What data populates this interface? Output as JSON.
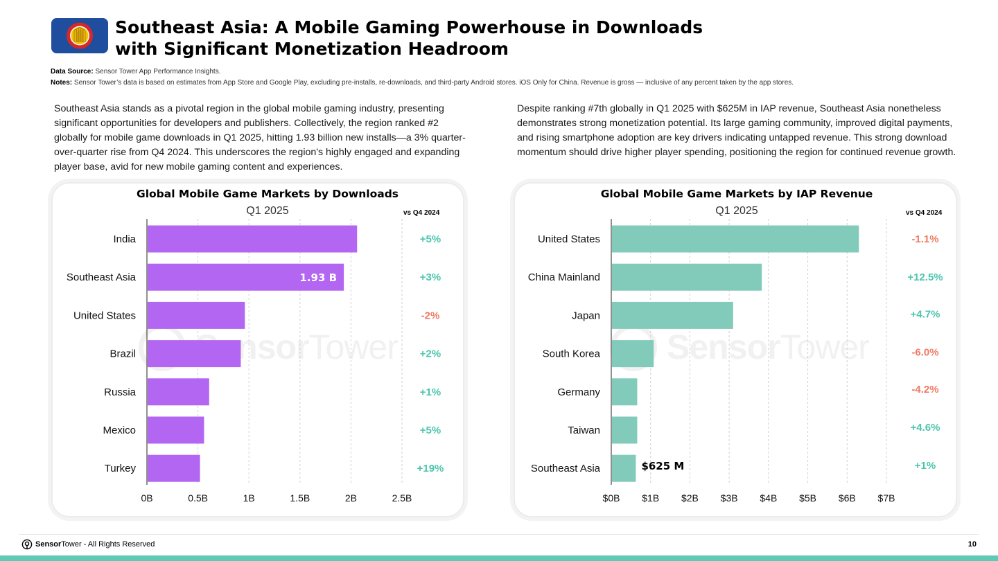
{
  "header": {
    "title": "Southeast Asia: A Mobile Gaming Powerhouse in Downloads with Significant Monetization Headroom",
    "data_source_label": "Data Source:",
    "data_source_text": "Sensor Tower App Performance Insights.",
    "notes_label": "Notes:",
    "notes_text": "Sensor Tower’s data is based on estimates from App Store and Google Play, excluding pre-installs, re-downloads, and third-party Android stores. iOS Only for China.  Revenue is gross — inclusive of any percent taken by the app stores."
  },
  "paragraphs": {
    "left": "Southeast Asia stands as a pivotal region in the global mobile gaming industry, presenting significant opportunities for developers and publishers. Collectively, the region ranked #2 globally for mobile game downloads in Q1 2025, hitting 1.93 billion new installs—a 3% quarter-over-quarter rise from Q4 2024. This underscores the region's highly engaged and expanding player base, avid for new mobile gaming content and experiences.",
    "right": "Despite ranking #7th globally in Q1 2025 with $625M in IAP revenue, Southeast Asia nonetheless demonstrates strong monetization potential. Its large gaming community, improved digital payments, and rising smartphone adoption are key drivers indicating untapped revenue. This strong download momentum should drive higher player spending, positioning the region for continued revenue growth."
  },
  "watermark": {
    "brand_bold": "Sensor",
    "brand_light": "Tower"
  },
  "chart_data": [
    {
      "type": "bar",
      "orientation": "horizontal",
      "title": "Global Mobile Game Markets by Downloads",
      "subtitle": "Q1 2025",
      "change_header": "vs Q4 2024",
      "categories": [
        "India",
        "Southeast Asia",
        "United States",
        "Brazil",
        "Russia",
        "Mexico",
        "Turkey"
      ],
      "values": [
        2.06,
        1.93,
        0.96,
        0.92,
        0.61,
        0.56,
        0.52
      ],
      "unit": "B",
      "changes": [
        "+5%",
        "+3%",
        "-2%",
        "+2%",
        "+1%",
        "+5%",
        "+19%"
      ],
      "xlim": [
        0,
        2.5
      ],
      "xticks": [
        0,
        0.5,
        1,
        1.5,
        2,
        2.5
      ],
      "xtick_labels": [
        "0B",
        "0.5B",
        "1B",
        "1.5B",
        "2B",
        "2.5B"
      ],
      "annotation": {
        "category": "Southeast Asia",
        "text": "1.93 B"
      },
      "bar_color": "#b366f2"
    },
    {
      "type": "bar",
      "orientation": "horizontal",
      "title": "Global Mobile Game Markets by IAP Revenue",
      "subtitle": "Q1 2025",
      "change_header": "vs Q4 2024",
      "categories": [
        "United States",
        "China Mainland",
        "Japan",
        "South Korea",
        "Germany",
        "Taiwan",
        "Southeast Asia"
      ],
      "values": [
        6.3,
        3.83,
        3.1,
        1.08,
        0.66,
        0.66,
        0.625
      ],
      "unit": "$B",
      "changes": [
        "-1.1%",
        "+12.5%",
        "+4.7%",
        "-6.0%",
        "-4.2%",
        "+4.6%",
        "+1%"
      ],
      "xlim": [
        0,
        7
      ],
      "xticks": [
        0,
        1,
        2,
        3,
        4,
        5,
        6,
        7
      ],
      "xtick_labels": [
        "$0B",
        "$1B",
        "$2B",
        "$3B",
        "$4B",
        "$5B",
        "$6B",
        "$7B"
      ],
      "annotation": {
        "category": "Southeast Asia",
        "text": "$625 M"
      },
      "bar_color": "#82cbba"
    }
  ],
  "colors": {
    "positive": "#4cc5ad",
    "negative": "#ef7a63",
    "accent": "#5ec9b4"
  },
  "footer": {
    "brand_bold": "Sensor",
    "brand_light": "Tower",
    "rights": " - All Rights Reserved",
    "page": "10"
  }
}
